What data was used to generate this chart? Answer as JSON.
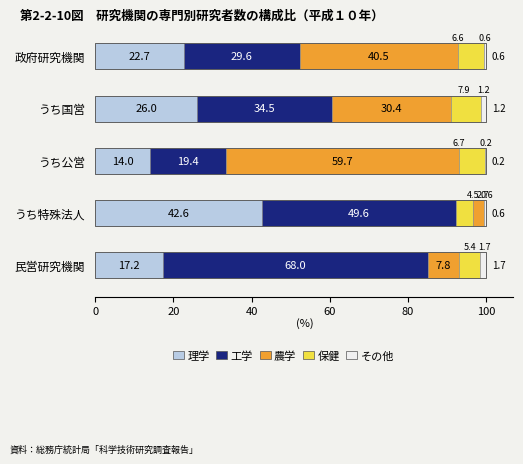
{
  "title": "第2-2-10図　研究機関の専門別研究者数の構成比（平成１０年）",
  "categories": [
    "政府研究機関",
    "うち国営",
    "うち公営",
    "うち特殊法人",
    "民営研究機関"
  ],
  "colors": {
    "理学": "#b8cce4",
    "工学": "#1a2580",
    "農学": "#f0a030",
    "保健": "#f0e040",
    "その他": "#f0f0f0"
  },
  "segments": [
    [
      22.7,
      29.6,
      40.5,
      6.6,
      0.6
    ],
    [
      26.0,
      34.5,
      30.4,
      7.9,
      1.2
    ],
    [
      14.0,
      19.4,
      59.7,
      6.7,
      0.2
    ],
    [
      42.6,
      49.6,
      0.0,
      4.5,
      2.7,
      0.6
    ],
    [
      17.2,
      68.0,
      7.8,
      5.4,
      1.7
    ]
  ],
  "seg_color_keys": [
    [
      "理学",
      "工学",
      "農学",
      "保健",
      "その他"
    ],
    [
      "理学",
      "工学",
      "農学",
      "保健",
      "その他"
    ],
    [
      "理学",
      "工学",
      "農学",
      "保健",
      "その他"
    ],
    [
      "理学",
      "工学",
      "農学",
      "保健",
      "農学",
      "その他"
    ],
    [
      "理学",
      "工学",
      "農学",
      "保健",
      "その他"
    ]
  ],
  "bar_labels": [
    [
      "22.7",
      "29.6",
      "40.5",
      "",
      ""
    ],
    [
      "26.0",
      "34.5",
      "30.4",
      "",
      ""
    ],
    [
      "14.0",
      "19.4",
      "59.7",
      "",
      ""
    ],
    [
      "42.6",
      "49.6",
      "",
      "",
      "",
      ""
    ],
    [
      "17.2",
      "68.0",
      "7.8",
      "",
      ""
    ]
  ],
  "above_bar_labels": [
    [
      [
        "6.6",
        92.8
      ],
      [
        "0.6",
        99.7
      ]
    ],
    [
      [
        "7.9",
        94.2
      ],
      [
        "1.2",
        99.4
      ]
    ],
    [
      [
        "6.7",
        93.1
      ],
      [
        "0.2",
        99.9
      ]
    ],
    [
      [
        "4.5",
        96.7
      ],
      [
        "2.7",
        99.2
      ],
      [
        "0.6",
        100.3
      ]
    ],
    [
      [
        "5.4",
        95.9
      ],
      [
        "1.7",
        99.55
      ]
    ]
  ],
  "source": "資料：総務庁統計局「科学技術研究調査報告」",
  "legend_labels": [
    "理学",
    "工学",
    "農学",
    "保健",
    "その他"
  ],
  "background_color": "#f2f2ee",
  "bar_height": 0.5,
  "xlim": [
    0,
    107
  ],
  "xticks": [
    0,
    20,
    40,
    60,
    80,
    100
  ]
}
